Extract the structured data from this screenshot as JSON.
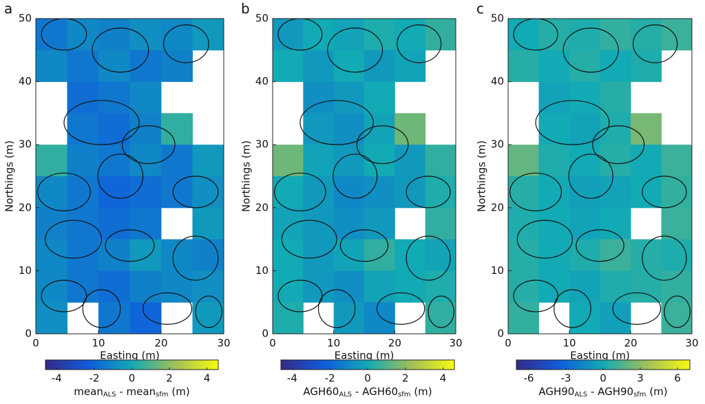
{
  "chart_data": [
    {
      "type": "heatmap",
      "label": "a",
      "xlabel": "Easting (m)",
      "ylabel": "Northings (m)",
      "xlim": [
        0,
        30
      ],
      "ylim": [
        0,
        50
      ],
      "xticks": [
        0,
        10,
        20,
        30
      ],
      "yticks": [
        0,
        10,
        20,
        30,
        40,
        50
      ],
      "colormap": "parula",
      "x": [
        2.5,
        7.5,
        12.5,
        17.5,
        22.5,
        27.5
      ],
      "y": [
        47.5,
        42.5,
        37.5,
        32.5,
        27.5,
        22.5,
        17.5,
        12.5,
        7.5,
        2.5
      ],
      "z": [
        [
          -1.5,
          -1,
          -1.2,
          -0.8,
          -1,
          -0.5
        ],
        [
          -1,
          -1.5,
          -1,
          -1.5,
          -1.2,
          null
        ],
        [
          null,
          -1.8,
          -1.5,
          -1,
          null,
          null
        ],
        [
          null,
          -1.5,
          -1.8,
          -1.2,
          0.5,
          null
        ],
        [
          0.5,
          -1.2,
          -1.5,
          -1,
          -1.5,
          -0.5
        ],
        [
          -1,
          -1.5,
          -2,
          -1.8,
          -1.5,
          -0.8
        ],
        [
          -1.2,
          -1.5,
          -1.8,
          -1.5,
          null,
          -0.5
        ],
        [
          -1,
          -1.5,
          -1.2,
          -0.5,
          -1,
          -1.2
        ],
        [
          -1,
          -1.5,
          -1.8,
          -1.2,
          -1,
          -0.8
        ],
        [
          -0.8,
          null,
          -1.5,
          -2,
          null,
          -0.5
        ]
      ],
      "colorbar": {
        "clim": [
          -4.6,
          4.6
        ],
        "ticks": [
          -4,
          -2,
          0,
          2,
          4
        ],
        "label": [
          "mean",
          "ALS",
          " - mean",
          "sfm",
          " (m)"
        ]
      }
    },
    {
      "type": "heatmap",
      "label": "b",
      "xlabel": "Easting (m)",
      "ylabel": "Northings (m)",
      "xlim": [
        0,
        30
      ],
      "ylim": [
        0,
        50
      ],
      "xticks": [
        0,
        10,
        20,
        30
      ],
      "yticks": [
        0,
        10,
        20,
        30,
        40,
        50
      ],
      "colormap": "parula",
      "x": [
        2.5,
        7.5,
        12.5,
        17.5,
        22.5,
        27.5
      ],
      "y": [
        47.5,
        42.5,
        37.5,
        32.5,
        27.5,
        22.5,
        17.5,
        12.5,
        7.5,
        2.5
      ],
      "z": [
        [
          -0.5,
          0,
          -0.2,
          0.2,
          0,
          0.5
        ],
        [
          0,
          -0.5,
          0,
          -0.5,
          -0.2,
          null
        ],
        [
          null,
          -0.8,
          -0.5,
          0,
          null,
          null
        ],
        [
          null,
          -0.5,
          -0.8,
          -0.2,
          1.5,
          null
        ],
        [
          1.5,
          -0.2,
          -0.5,
          0,
          -0.5,
          0.5
        ],
        [
          0,
          -0.5,
          -1,
          -0.8,
          -0.5,
          0.2
        ],
        [
          -0.2,
          -0.5,
          -0.8,
          -0.5,
          null,
          0.5
        ],
        [
          0,
          -0.5,
          -0.2,
          0.5,
          0,
          -0.2
        ],
        [
          0,
          -0.5,
          -0.8,
          -0.2,
          0,
          0.2
        ],
        [
          0.2,
          null,
          -0.5,
          -1,
          null,
          0.5
        ]
      ],
      "colorbar": {
        "clim": [
          -4.6,
          4.6
        ],
        "ticks": [
          -4,
          -2,
          0,
          2,
          4
        ],
        "label": [
          "AGH60",
          "ALS",
          " - AGH60",
          "sfm",
          " (m)"
        ]
      }
    },
    {
      "type": "heatmap",
      "label": "c",
      "xlabel": "Easting (m)",
      "ylabel": "Northings (m)",
      "xlim": [
        0,
        30
      ],
      "ylim": [
        0,
        50
      ],
      "xticks": [
        0,
        10,
        20,
        30
      ],
      "yticks": [
        0,
        10,
        20,
        30,
        40,
        50
      ],
      "colormap": "parula",
      "x": [
        2.5,
        7.5,
        12.5,
        17.5,
        22.5,
        27.5
      ],
      "y": [
        47.5,
        42.5,
        37.5,
        32.5,
        27.5,
        22.5,
        17.5,
        12.5,
        7.5,
        2.5
      ],
      "z": [
        [
          0,
          0.5,
          0.3,
          0.8,
          0.5,
          1
        ],
        [
          0.5,
          0,
          0.5,
          0,
          0.3,
          null
        ],
        [
          null,
          -0.3,
          0,
          0.5,
          null,
          null
        ],
        [
          null,
          0,
          -0.3,
          0.3,
          2.5,
          null
        ],
        [
          2,
          0.3,
          0,
          0.5,
          0,
          1
        ],
        [
          0.5,
          0,
          -0.5,
          -0.3,
          0,
          0.8
        ],
        [
          0.3,
          0,
          -0.3,
          0,
          null,
          1
        ],
        [
          0.5,
          0,
          0.3,
          1,
          0.5,
          0.3
        ],
        [
          0.5,
          0,
          -0.3,
          0.3,
          0.5,
          0.8
        ],
        [
          0.8,
          null,
          0,
          -0.5,
          null,
          1
        ]
      ],
      "colorbar": {
        "clim": [
          -7,
          7
        ],
        "ticks": [
          -6,
          -3,
          0,
          3,
          6
        ],
        "label": [
          "AGH90",
          "ALS",
          " - AGH90",
          "sfm",
          " (m)"
        ]
      }
    }
  ]
}
